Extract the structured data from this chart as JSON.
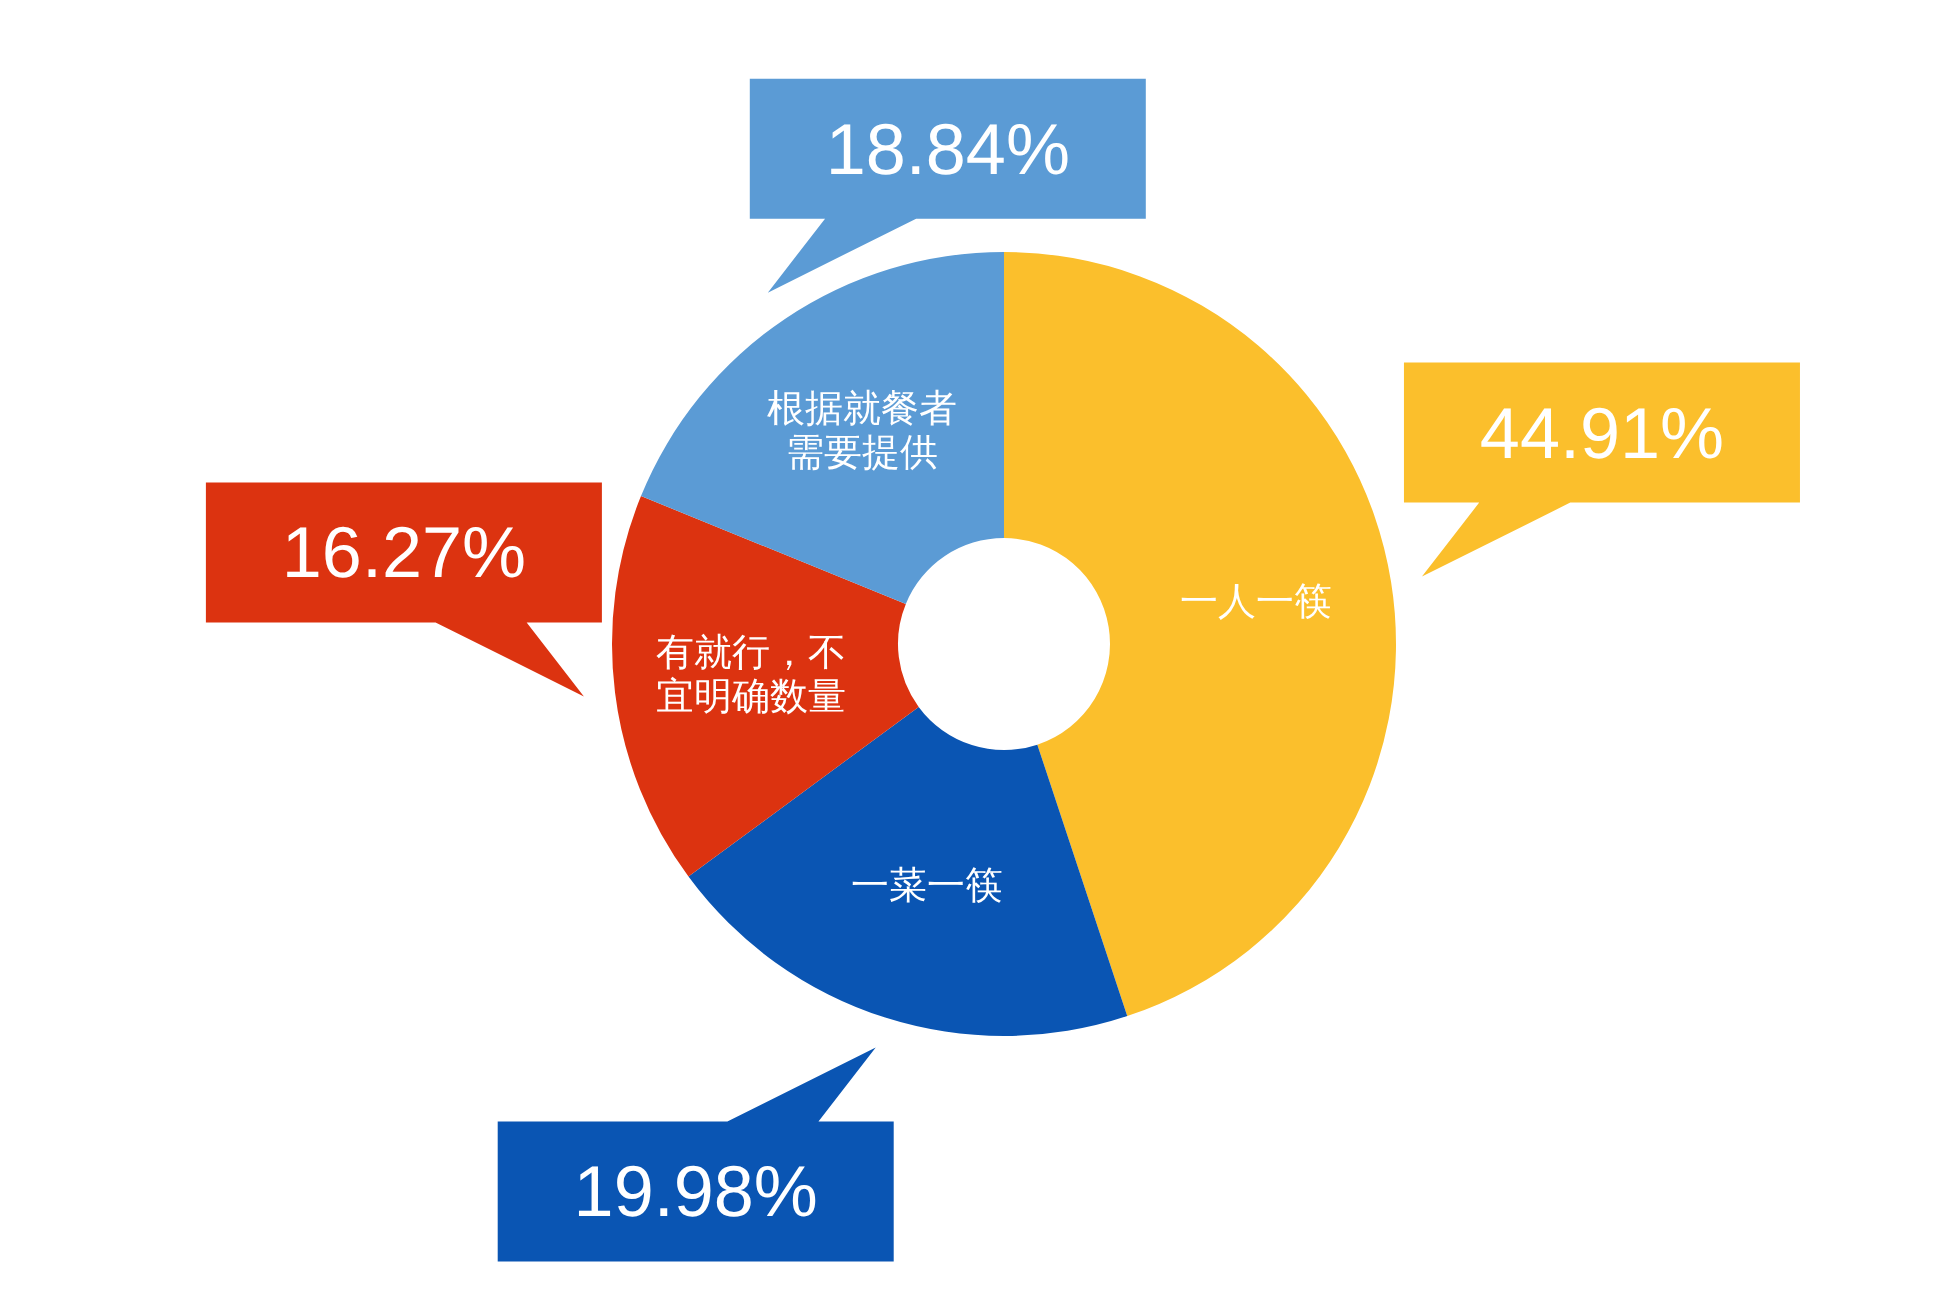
{
  "chart_data": {
    "type": "donut",
    "categories": [
      "一人一筷",
      "一菜一筷",
      "有就行，不宜明确数量",
      "根据就餐者需要提供"
    ],
    "values": [
      44.91,
      19.98,
      16.27,
      18.84
    ],
    "value_labels": [
      "44.91%",
      "19.98%",
      "16.27%",
      "18.84%"
    ],
    "colors": [
      "#fbbf2c",
      "#0a55b3",
      "#dc3310",
      "#5b9bd5"
    ]
  }
}
